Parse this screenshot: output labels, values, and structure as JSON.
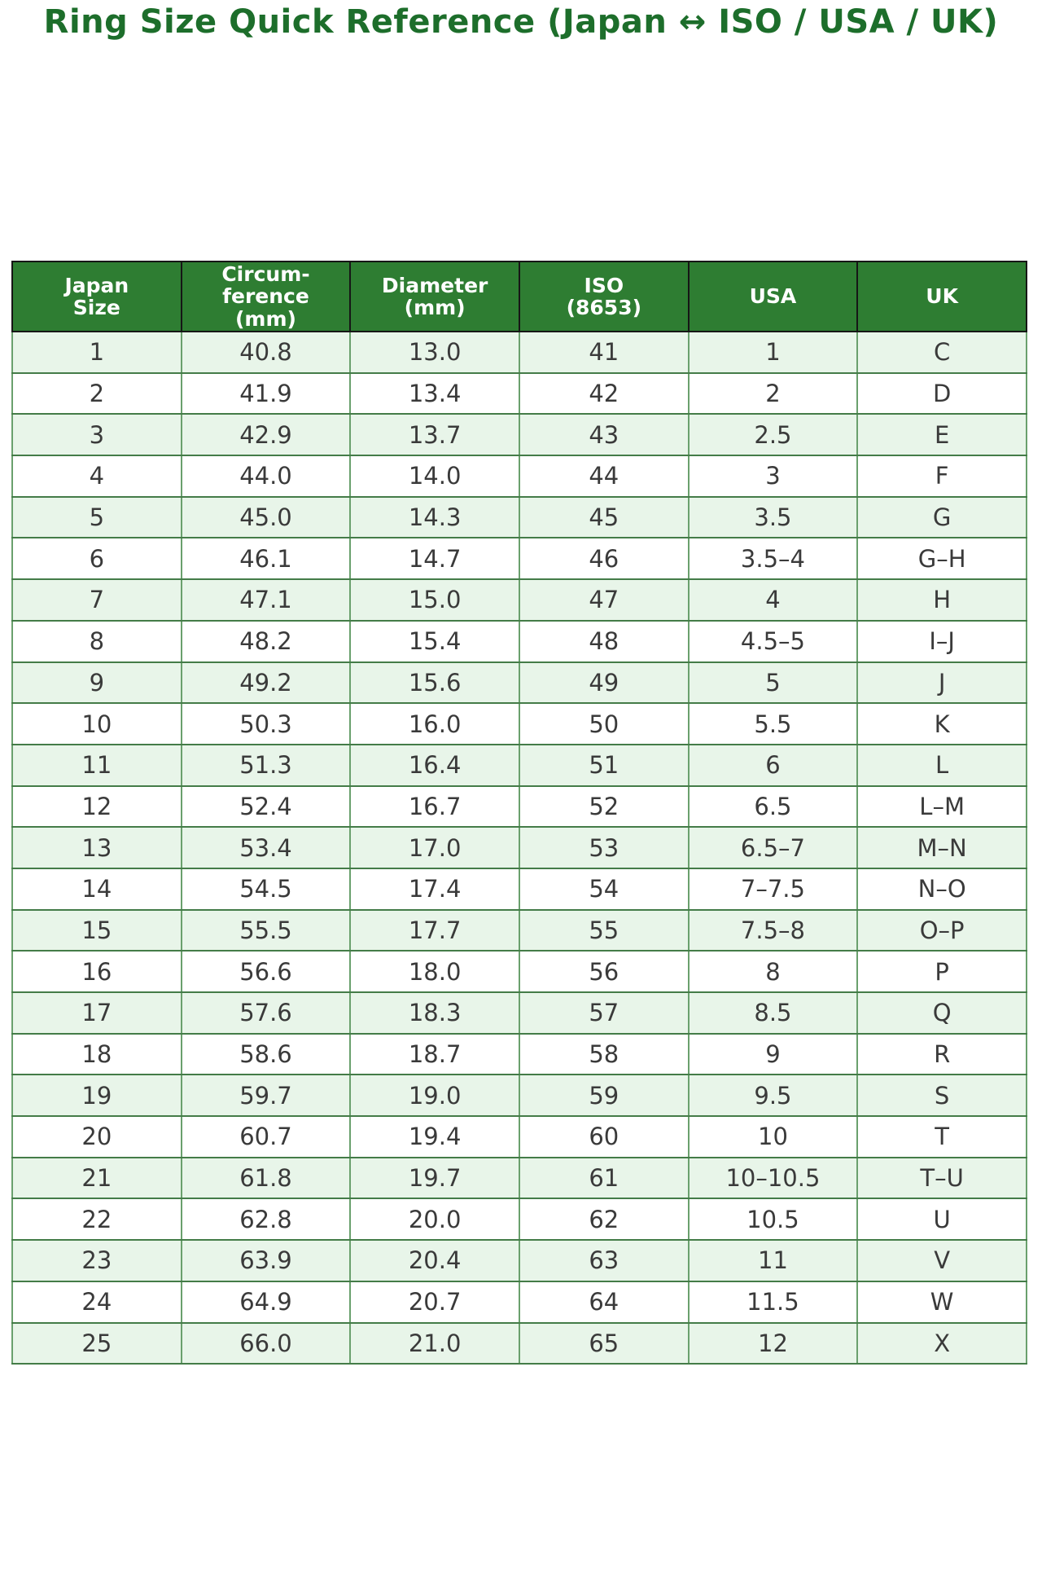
{
  "title": "Ring Size Quick Reference (Japan ↔ ISO / USA / UK)",
  "colors": {
    "title-color": "#1d6e2b",
    "header-bg": "#2e7d32",
    "header-text": "#ffffff",
    "header-border": "#161616",
    "outer-border": "#1c1c1c",
    "border-v": "#6aa06d",
    "border-h": "#447c48",
    "row-alt-bg": "#e8f5e9",
    "row-bg": "#ffffff",
    "cell-text": "#3a3a3a"
  },
  "table": {
    "headers_display": [
      "Japan\nSize",
      "Circum-\nference\n(mm)",
      "Diameter\n(mm)",
      "ISO\n(8653)",
      "USA",
      "UK"
    ]
  },
  "chart_data": {
    "type": "table",
    "title": "Ring Size Quick Reference (Japan ↔ ISO / USA / UK)",
    "columns": [
      "Japan Size",
      "Circumference (mm)",
      "Diameter (mm)",
      "ISO (8653)",
      "USA",
      "UK"
    ],
    "rows": [
      [
        "1",
        "40.8",
        "13.0",
        "41",
        "1",
        "C"
      ],
      [
        "2",
        "41.9",
        "13.4",
        "42",
        "2",
        "D"
      ],
      [
        "3",
        "42.9",
        "13.7",
        "43",
        "2.5",
        "E"
      ],
      [
        "4",
        "44.0",
        "14.0",
        "44",
        "3",
        "F"
      ],
      [
        "5",
        "45.0",
        "14.3",
        "45",
        "3.5",
        "G"
      ],
      [
        "6",
        "46.1",
        "14.7",
        "46",
        "3.5–4",
        "G–H"
      ],
      [
        "7",
        "47.1",
        "15.0",
        "47",
        "4",
        "H"
      ],
      [
        "8",
        "48.2",
        "15.4",
        "48",
        "4.5–5",
        "I–J"
      ],
      [
        "9",
        "49.2",
        "15.6",
        "49",
        "5",
        "J"
      ],
      [
        "10",
        "50.3",
        "16.0",
        "50",
        "5.5",
        "K"
      ],
      [
        "11",
        "51.3",
        "16.4",
        "51",
        "6",
        "L"
      ],
      [
        "12",
        "52.4",
        "16.7",
        "52",
        "6.5",
        "L–M"
      ],
      [
        "13",
        "53.4",
        "17.0",
        "53",
        "6.5–7",
        "M–N"
      ],
      [
        "14",
        "54.5",
        "17.4",
        "54",
        "7–7.5",
        "N–O"
      ],
      [
        "15",
        "55.5",
        "17.7",
        "55",
        "7.5–8",
        "O–P"
      ],
      [
        "16",
        "56.6",
        "18.0",
        "56",
        "8",
        "P"
      ],
      [
        "17",
        "57.6",
        "18.3",
        "57",
        "8.5",
        "Q"
      ],
      [
        "18",
        "58.6",
        "18.7",
        "58",
        "9",
        "R"
      ],
      [
        "19",
        "59.7",
        "19.0",
        "59",
        "9.5",
        "S"
      ],
      [
        "20",
        "60.7",
        "19.4",
        "60",
        "10",
        "T"
      ],
      [
        "21",
        "61.8",
        "19.7",
        "61",
        "10–10.5",
        "T–U"
      ],
      [
        "22",
        "62.8",
        "20.0",
        "62",
        "10.5",
        "U"
      ],
      [
        "23",
        "63.9",
        "20.4",
        "63",
        "11",
        "V"
      ],
      [
        "24",
        "64.9",
        "20.7",
        "64",
        "11.5",
        "W"
      ],
      [
        "25",
        "66.0",
        "21.0",
        "65",
        "12",
        "X"
      ]
    ]
  }
}
